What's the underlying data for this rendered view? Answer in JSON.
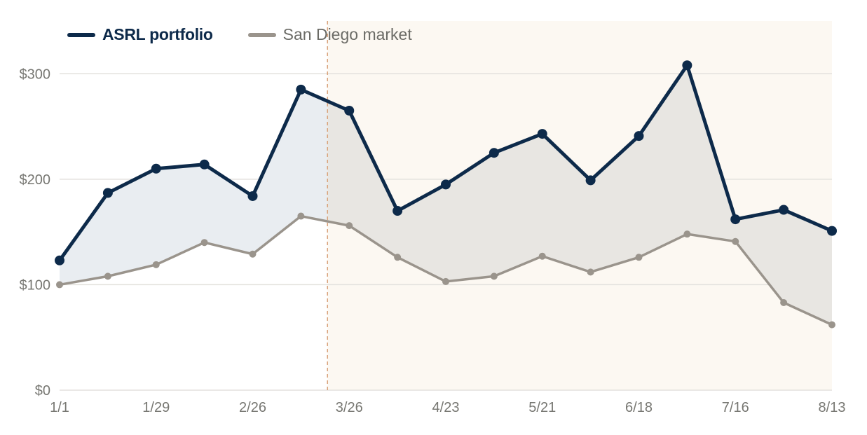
{
  "legend": {
    "main_label": "ASRL portfolio",
    "market_label": "San Diego market"
  },
  "chart_data": {
    "type": "line",
    "title": "",
    "xlabel": "",
    "ylabel": "",
    "x": [
      "1/1",
      "1/15",
      "1/29",
      "2/12",
      "2/26",
      "3/12",
      "3/26",
      "4/9",
      "4/23",
      "5/7",
      "5/21",
      "6/4",
      "6/18",
      "7/2",
      "7/16",
      "7/30",
      "8/13"
    ],
    "x_tick_labels": [
      "1/1",
      "1/29",
      "2/26",
      "3/26",
      "4/23",
      "5/21",
      "6/18",
      "7/16",
      "8/13"
    ],
    "ylim": [
      0,
      350
    ],
    "y_ticks": [
      0,
      100,
      200,
      300
    ],
    "y_tick_labels": [
      "$0",
      "$100",
      "$200",
      "$300"
    ],
    "grid": true,
    "legend_position": "top-left",
    "shaded_region": {
      "start": "3/5",
      "end": "8/13",
      "color": "#fcf8f2",
      "divider_color": "#d9a27a"
    },
    "series": [
      {
        "name": "ASRL portfolio",
        "color": "#0d2a4a",
        "values": [
          123,
          187,
          210,
          214,
          184,
          285,
          265,
          170,
          195,
          225,
          243,
          199,
          241,
          308,
          162,
          171,
          151
        ]
      },
      {
        "name": "San Diego market",
        "color": "#9a948c",
        "values": [
          100,
          108,
          119,
          140,
          129,
          165,
          156,
          126,
          103,
          108,
          127,
          112,
          126,
          148,
          141,
          83,
          62
        ]
      }
    ],
    "gap_fill": {
      "before_region": "#e9edf1",
      "in_region": "#e8e6e2"
    }
  }
}
